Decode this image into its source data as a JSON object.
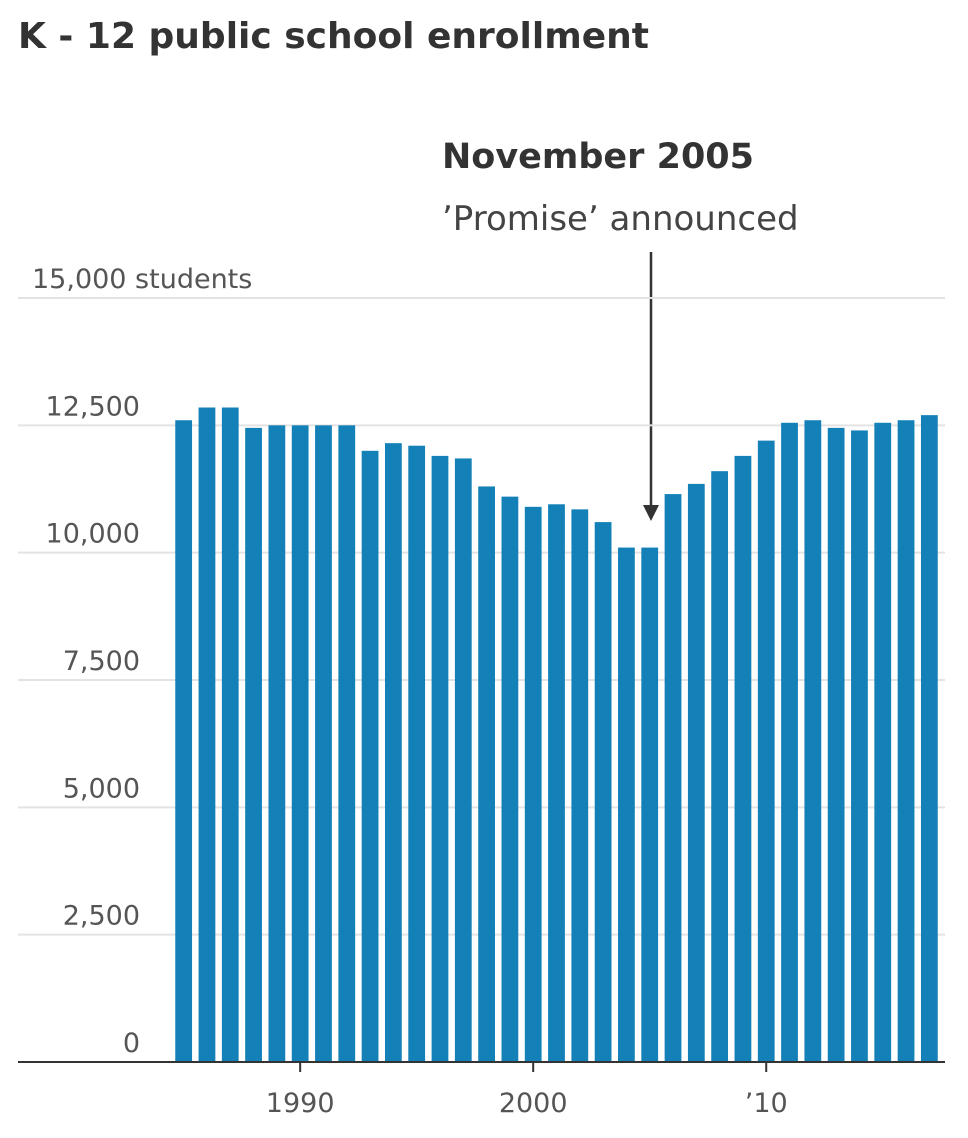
{
  "chart_data": {
    "type": "bar",
    "title": "K - 12 public school enrollment",
    "annotation": {
      "title": "November 2005",
      "text": "’Promise’ announced"
    },
    "x": [
      1985,
      1986,
      1987,
      1988,
      1989,
      1990,
      1991,
      1992,
      1993,
      1994,
      1995,
      1996,
      1997,
      1998,
      1999,
      2000,
      2001,
      2002,
      2003,
      2004,
      2005,
      2006,
      2007,
      2008,
      2009,
      2010,
      2011,
      2012,
      2013,
      2014,
      2015,
      2016,
      2017
    ],
    "values": [
      12600,
      12850,
      12850,
      12450,
      12500,
      12500,
      12500,
      12500,
      12000,
      12150,
      12100,
      11900,
      11850,
      11300,
      11100,
      10900,
      10950,
      10850,
      10600,
      10100,
      10100,
      11150,
      11350,
      11600,
      11900,
      12200,
      12550,
      12600,
      12450,
      12400,
      12550,
      12600,
      12700
    ],
    "color": "#1380b8",
    "xlim": [
      1984.5,
      2017.5
    ],
    "xticks": [
      1990,
      2000,
      {
        "value": 2010,
        "label": "’10"
      }
    ],
    "ylim": [
      0,
      15000
    ],
    "yticks": [
      0,
      {
        "value": 2500,
        "label": "2,500"
      },
      {
        "value": 5000,
        "label": "5,000"
      },
      {
        "value": 7500,
        "label": "7,500"
      },
      {
        "value": 10000,
        "label": "10,000"
      },
      {
        "value": 12500,
        "label": "12,500"
      },
      {
        "value": 15000,
        "label": "15,000 students"
      }
    ],
    "grid": true
  }
}
